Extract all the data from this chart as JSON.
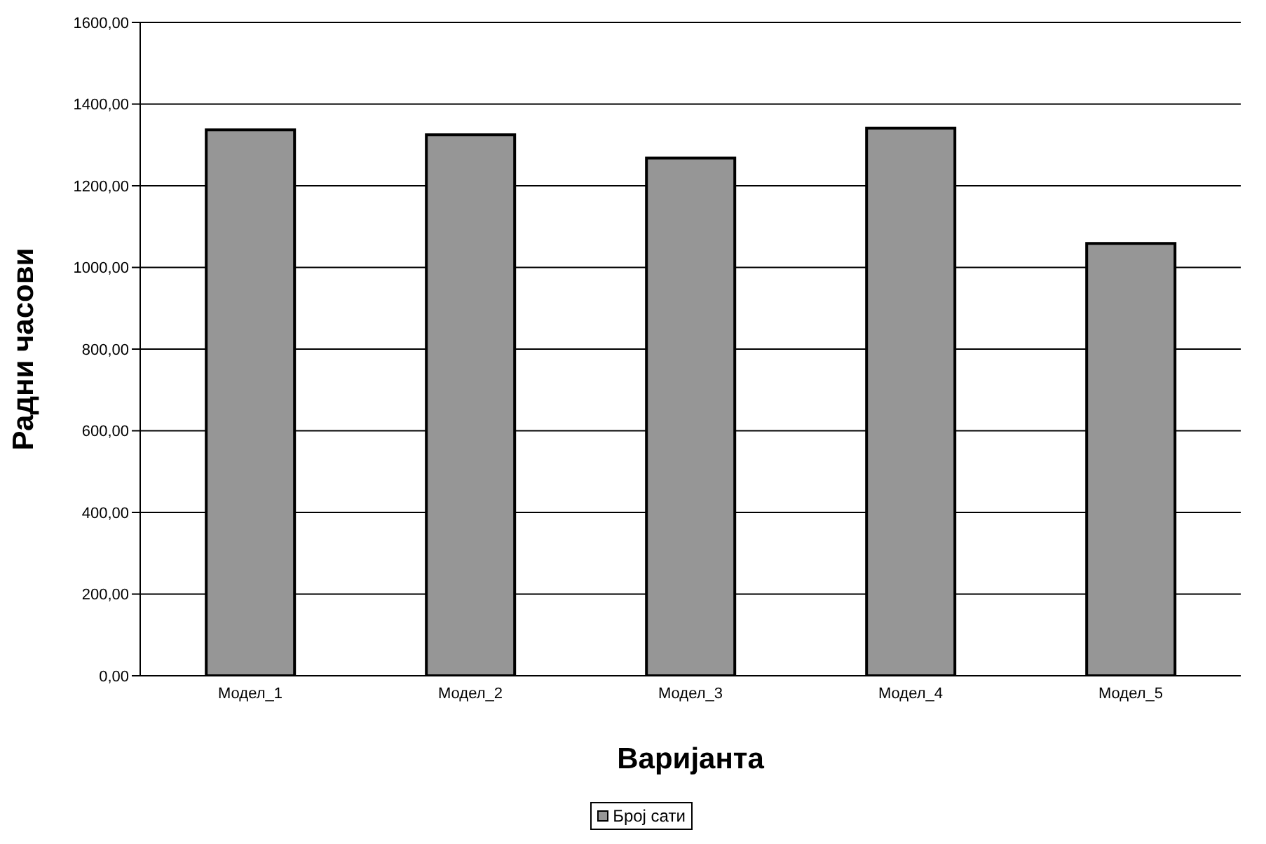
{
  "chart_data": {
    "type": "bar",
    "xlabel": "Варијанта",
    "ylabel": "Радни часови",
    "categories": [
      "Модел_1",
      "Модел_2",
      "Модел_3",
      "Модел_4",
      "Модел_5"
    ],
    "series": [
      {
        "name": "Број сати",
        "color": "#969696",
        "values": [
          1337,
          1325,
          1268,
          1341,
          1059
        ]
      }
    ],
    "ylim": [
      0,
      1600
    ],
    "yticks": [
      {
        "value": 0,
        "label": "0,00"
      },
      {
        "value": 200,
        "label": "200,00"
      },
      {
        "value": 400,
        "label": "400,00"
      },
      {
        "value": 600,
        "label": "600,00"
      },
      {
        "value": 800,
        "label": "800,00"
      },
      {
        "value": 1000,
        "label": "1000,00"
      },
      {
        "value": 1200,
        "label": "1200,00"
      },
      {
        "value": 1400,
        "label": "1400,00"
      },
      {
        "value": 1600,
        "label": "1600,00"
      }
    ],
    "grid": "y",
    "legend": "bottom"
  }
}
